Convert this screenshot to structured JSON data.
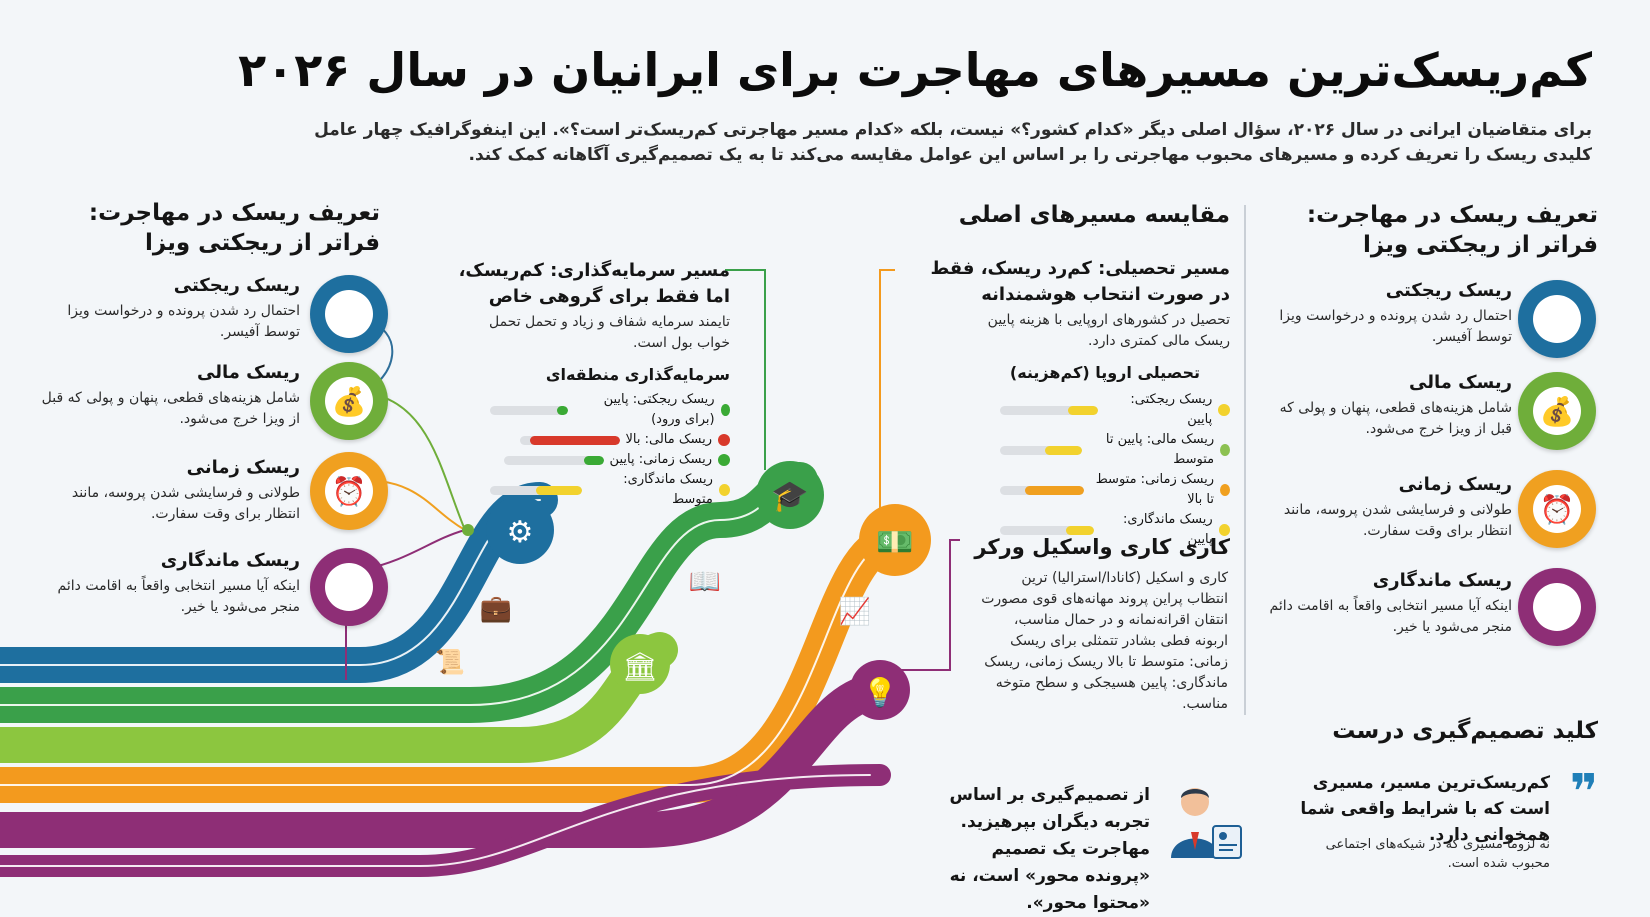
{
  "title": "کم‌ریسک‌ترین مسیرهای مهاجرت برای ایرانیان در سال ۲۰۲۶",
  "intro": "برای متقاضیان ایرانی در سال ۲۰۲۶، سؤال اصلی دیگر «کدام کشور؟» نیست، بلکه «کدام مسیر مهاجرتی کم‌ریسک‌تر است؟». این اینفوگرافیک چهار عامل کلیدی ریسک را تعریف کرده و مسیرهای محبوب مهاجرتی را بر اساس این عوامل مقایسه می‌کند تا به یک تصمیم‌گیری آگاهانه کمک کند.",
  "left_panel": {
    "heading_1": "تعریف ریسک در مهاجرت:",
    "heading_2": "فراتر از ریجکتی ویزا",
    "risks": [
      {
        "title": "ریسک ریجکتی",
        "desc": "احتمال رد شدن پرونده و درخواست ویزا توسط آفیسر.",
        "icon": "shield-x-icon",
        "color": "#1e6f9f"
      },
      {
        "title": "ریسک مالی",
        "desc": "شامل هزینه‌های قطعی، پنهان و پولی که قبل از ویزا خرج می‌شود.",
        "icon": "coins-icon",
        "color": "#6fae3a"
      },
      {
        "title": "ریسک زمانی",
        "desc": "طولانی و فرسایشی شدن پروسه، مانند انتظار برای وقت سفارت.",
        "icon": "clock-icon",
        "color": "#f0a020"
      },
      {
        "title": "ریسک ماندگاری",
        "desc": "اینکه آیا مسیر انتخابی واقعاً به اقامت دائم منجر می‌شود یا خیر.",
        "icon": "anchor-icon",
        "color": "#8e2e76"
      }
    ]
  },
  "right_panel": {
    "heading_1": "تعریف ریسک در مهاجرت:",
    "heading_2": "فراتر از ریجکتی ویزا",
    "risks": [
      {
        "title": "ریسک ریجکتی",
        "desc": "احتمال رد شدن پرونده و درخواست ویزا توسط آفیسر.",
        "icon": "shield-x-icon",
        "color": "#1e6f9f"
      },
      {
        "title": "ریسک مالی",
        "desc": "شامل هزینه‌های قطعی، پنهان و پولی که قبل از ویزا خرج می‌شود.",
        "icon": "coins-icon",
        "color": "#6fae3a"
      },
      {
        "title": "ریسک زمانی",
        "desc": "طولانی و فرسایشی شدن پروسه، مانند انتظار برای وقت سفارت.",
        "icon": "clock-icon",
        "color": "#f0a020"
      },
      {
        "title": "ریسک ماندگاری",
        "desc": "اینکه آیا مسیر انتخابی واقعاً به اقامت دائم منجر می‌شود یا خیر.",
        "icon": "anchor-icon",
        "color": "#8e2e76"
      }
    ]
  },
  "compare": {
    "heading": "مقایسه مسیرهای اصلی",
    "study": {
      "title_1": "مسیر تحصیلی: کم‌رد ریسک، فقط",
      "title_2": "در صورت انتحاب هوشمندانه",
      "desc": "تحصیل در کشورهای اروپایی با هزینه پایین ریسک مالی کمتری دارد.",
      "sub": "تحصیلی اروپا (کم‌هزینه)",
      "rows": [
        {
          "label": "ریسک ریجکتی: پایین",
          "dot": "#f2d22e",
          "fill": 0.3,
          "fillColor": "#f2d22e"
        },
        {
          "label": "ریسک مالی: پایین تا متوسط",
          "dot": "#8cc152",
          "fill": 0.45,
          "fillColor": "#f2d22e"
        },
        {
          "label": "ریسک زمانی: متوسط تا بالا",
          "dot": "#f0a020",
          "fill": 0.7,
          "fillColor": "#f0a020"
        },
        {
          "label": "ریسک ماندگاری: پایین",
          "dot": "#f2d22e",
          "fill": 0.3,
          "fillColor": "#f2d22e"
        }
      ]
    },
    "invest": {
      "title_1": "مسیر سرمایه‌گذاری: کم‌ریسک،",
      "title_2": "اما فقط برای گروهی خاص",
      "desc": "تایمند سرمایه شفاف و زیاد و تحمل تحمل خواب بول است.",
      "sub": "سرمایه‌گذاری منطقه‌ای",
      "rows": [
        {
          "label": "ریسک ریجکتی: پایین (برای ورود)",
          "dot": "#3aaa35",
          "fill": 0.15,
          "fillColor": "#3aaa35"
        },
        {
          "label": "ریسک مالی: بالا",
          "dot": "#d8392b",
          "fill": 0.9,
          "fillColor": "#d8392b"
        },
        {
          "label": "ریسک زمانی: پایین",
          "dot": "#3aaa35",
          "fill": 0.2,
          "fillColor": "#3aaa35"
        },
        {
          "label": "ریسک ماندگاری: متوسط",
          "dot": "#f2d22e",
          "fill": 0.5,
          "fillColor": "#f2d22e"
        }
      ]
    },
    "work": {
      "title": "کاری کاری واسکیل ورکر",
      "desc": "کاری و اسکیل (کانادا/استرالیا) ترین انتظاب پراین پروند مهانه‌های قوی مصورت انتقان اقرانه‌نمانه و در حمال مناسب، اربونه فطی بشادر تتمثلی برای ریسک زمانی: متوسط تا بالا ریسک زمانی، ریسک ماندگاری: پایین هسیجکی و سطح متوخه مناسب."
    }
  },
  "key": {
    "heading": "کلید تصمیم‌گیری درست",
    "quote": "کم‌ریسک‌ترین مسیر، مسیری است که با شرایط واقعی شما همخوانی دارد.",
    "note": "نه لزوماً مسیری که در شیکه‌های اجتماعی محبوب شده است.",
    "advice": "از تصمیم‌گیری بر اساس تجربه دیگران بپرهیزید. مهاجرت یک تصمیم «پرونده محور» است، نه «محتوا محور»."
  },
  "colors": {
    "blue": "#1e6f9f",
    "green": "#3aa04a",
    "lime": "#8cc63f",
    "orange": "#f39a1e",
    "purple": "#8e2e76"
  }
}
